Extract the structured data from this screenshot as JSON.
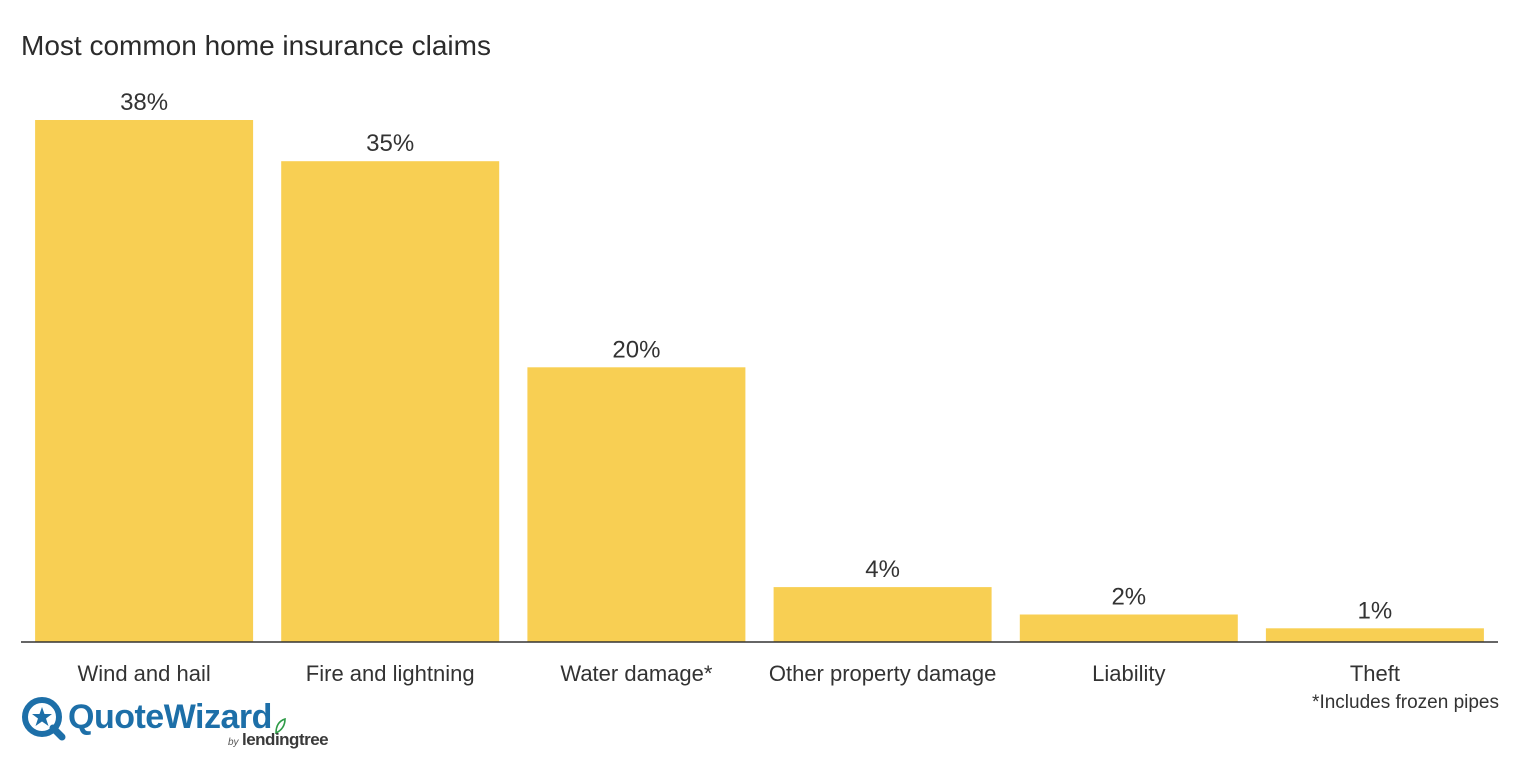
{
  "chart_data": {
    "type": "bar",
    "title": "Most common home insurance claims",
    "categories": [
      "Wind and hail",
      "Fire and lightning",
      "Water damage*",
      "Other property damage",
      "Liability",
      "Theft"
    ],
    "values": [
      38,
      35,
      20,
      4,
      2,
      1
    ],
    "value_labels": [
      "38%",
      "35%",
      "20%",
      "4%",
      "2%",
      "1%"
    ],
    "xlabel": "",
    "ylabel": "",
    "ylim": [
      0,
      38
    ],
    "grid": false,
    "legend": "none",
    "bar_color": "#f8cf53"
  },
  "footnote": "*Includes frozen pipes",
  "logo": {
    "name": "QuoteWizard",
    "by": "by",
    "parent": "lendingtree",
    "brand_color": "#1d6fa8",
    "leaf_color": "#2e9b47"
  }
}
